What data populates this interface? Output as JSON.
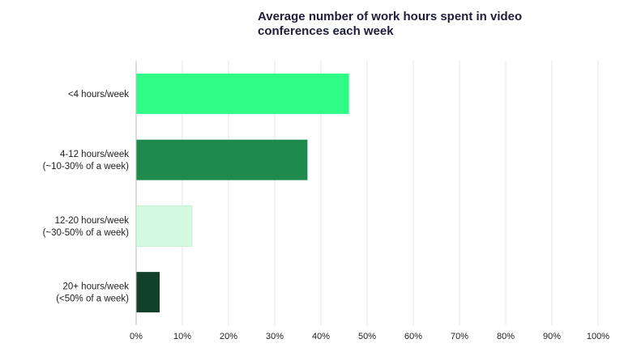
{
  "chart_data": {
    "type": "bar",
    "orientation": "horizontal",
    "title": "Average number of work hours spent in video conferences each week",
    "categories": [
      [
        "<4 hours/week"
      ],
      [
        "4-12 hours/week",
        "(~10-30% of a week)"
      ],
      [
        "12-20 hours/week",
        "(~30-50% of a week)"
      ],
      [
        "20+ hours/week",
        "(<50% of a week)"
      ]
    ],
    "values": [
      46,
      37,
      12,
      5
    ],
    "colors": [
      "#2efc86",
      "#1e8a4c",
      "#d4fbe2",
      "#11412a"
    ],
    "xlim": [
      0,
      100
    ],
    "xticks": [
      "0%",
      "10%",
      "20%",
      "30%",
      "40%",
      "50%",
      "60%",
      "70%",
      "80%",
      "90%",
      "100%"
    ],
    "grid": true,
    "xlabel": "",
    "ylabel": ""
  }
}
